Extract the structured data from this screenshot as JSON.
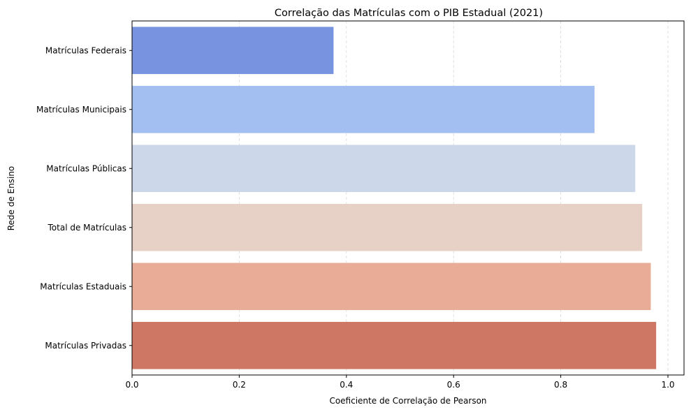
{
  "chart_data": {
    "type": "bar",
    "orientation": "horizontal",
    "title": "Correlação das Matrículas com o PIB Estadual (2021)",
    "xlabel": "Coeficiente de Correlação de Pearson",
    "ylabel": "Rede de Ensino",
    "xlim": [
      0,
      1.03
    ],
    "xticks": [
      "0.0",
      "0.2",
      "0.4",
      "0.6",
      "0.8",
      "1.0"
    ],
    "grid": "x-dashed",
    "categories": [
      "Matrículas Federais",
      "Matrículas Municipais",
      "Matrículas Públicas",
      "Total de Matrículas",
      "Matrículas Estaduais",
      "Matrículas Privadas"
    ],
    "values": [
      0.376,
      0.863,
      0.939,
      0.952,
      0.968,
      0.978
    ],
    "colors": [
      "#7894e0",
      "#a3bff2",
      "#ccd8ea",
      "#e7d1c6",
      "#e9ad97",
      "#cf7765"
    ]
  }
}
